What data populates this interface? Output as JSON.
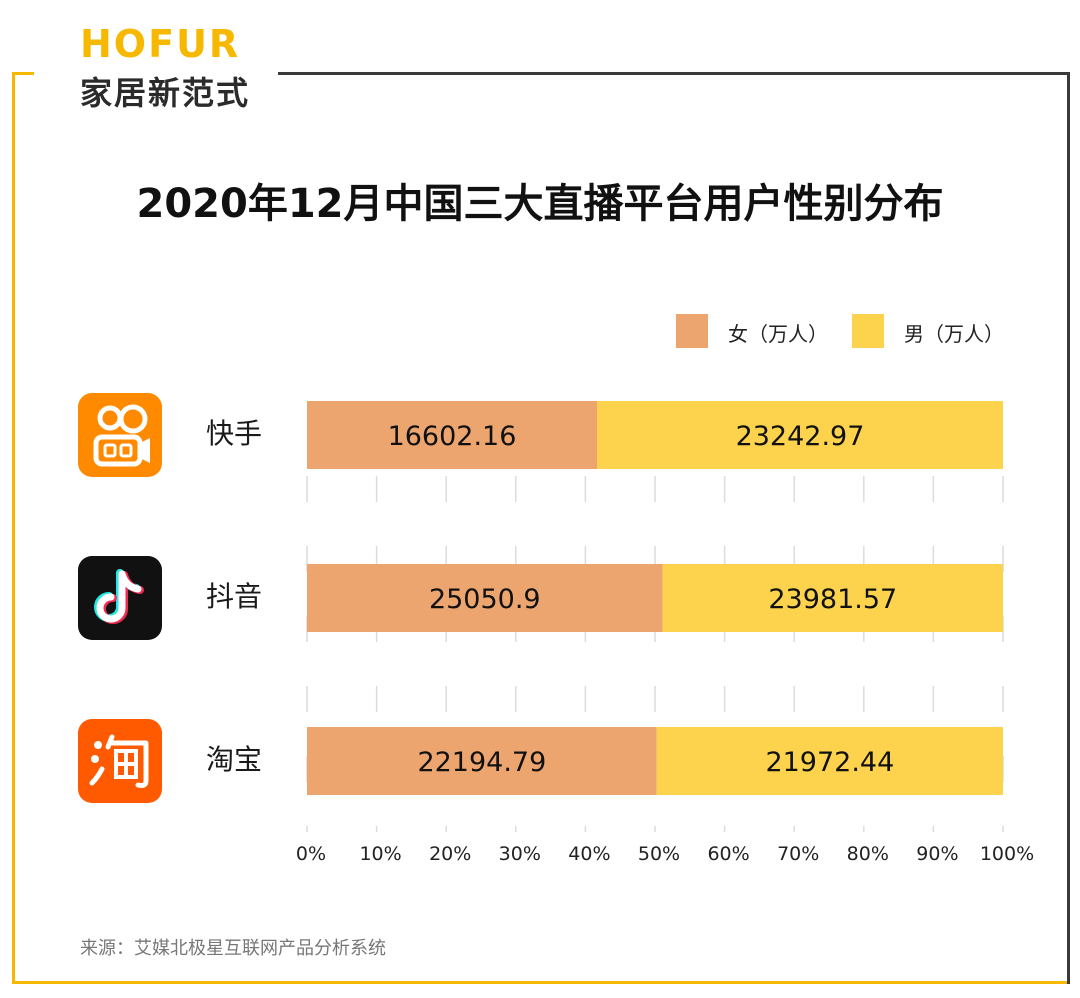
{
  "brand": {
    "name": "HOFUR",
    "tagline": "家居新范式"
  },
  "colors": {
    "female": "#eda56f",
    "male": "#fdd34d",
    "frame_yellow": "#f6b800",
    "frame_dark": "#3a3a3a"
  },
  "legend": {
    "female": "女（万人）",
    "male": "男（万人）"
  },
  "source": "来源：艾媒北极星互联网产品分析系统",
  "apps": [
    {
      "name": "快手",
      "icon": "kuaishou-icon"
    },
    {
      "name": "抖音",
      "icon": "douyin-icon"
    },
    {
      "name": "淘宝",
      "icon": "taobao-icon"
    }
  ],
  "chart_data": {
    "type": "bar",
    "stacked": "percent",
    "orientation": "horizontal",
    "title": "2020年12月中国三大直播平台用户性别分布",
    "categories": [
      "快手",
      "抖音",
      "淘宝"
    ],
    "series": [
      {
        "name": "女（万人）",
        "values": [
          16602.16,
          25050.9,
          22194.79
        ],
        "labels": [
          "16602.16",
          "25050.9",
          "22194.79"
        ]
      },
      {
        "name": "男（万人）",
        "values": [
          23242.97,
          23981.57,
          21972.44
        ],
        "labels": [
          "23242.97",
          "23981.57",
          "21972.44"
        ]
      }
    ],
    "x_ticks": [
      "0%",
      "10%",
      "20%",
      "30%",
      "40%",
      "50%",
      "60%",
      "70%",
      "80%",
      "90%",
      "100%"
    ],
    "xlim": [
      0,
      100
    ],
    "legend_position": "top-right",
    "grid": "vertical dashed"
  }
}
